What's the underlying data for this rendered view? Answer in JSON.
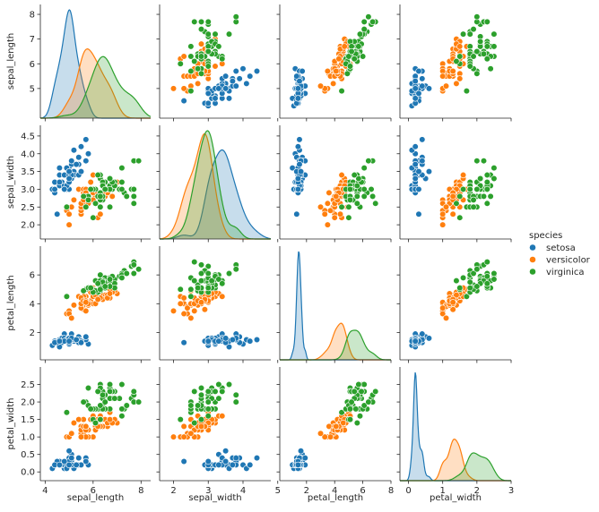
{
  "chart_data": {
    "type": "pairplot",
    "kind": "scatter with kde diagonal",
    "variables": [
      "sepal_length",
      "sepal_width",
      "petal_length",
      "petal_width"
    ],
    "hue": "species",
    "axis_ranges": {
      "sepal_length": [
        3.8,
        8.4
      ],
      "sepal_width": [
        1.6,
        4.8
      ],
      "petal_length": [
        0.1,
        8.0
      ],
      "petal_width": [
        -0.25,
        3.0
      ]
    },
    "ticks": {
      "sepal_length": [
        4,
        6,
        8
      ],
      "sepal_width": [
        2,
        3,
        4,
        5
      ],
      "petal_length": [
        2,
        4,
        6,
        8
      ],
      "petal_width": [
        0,
        1,
        2,
        3
      ]
    },
    "ytick_labels": {
      "sepal_length": [
        "5",
        "6",
        "7",
        "8"
      ],
      "sepal_width": [
        "2.0",
        "2.5",
        "3.0",
        "3.5",
        "4.0",
        "4.5"
      ],
      "petal_length": [
        "2",
        "4",
        "6"
      ],
      "petal_width": [
        "0.0",
        "0.5",
        "1.0",
        "1.5",
        "2.0",
        "2.5"
      ]
    },
    "ytick_values": {
      "sepal_length": [
        5,
        6,
        7,
        8
      ],
      "sepal_width": [
        2.0,
        2.5,
        3.0,
        3.5,
        4.0,
        4.5
      ],
      "petal_length": [
        2,
        4,
        6
      ],
      "petal_width": [
        0.0,
        0.5,
        1.0,
        1.5,
        2.0,
        2.5
      ]
    },
    "legend": {
      "title": "species",
      "placement": "right-center",
      "entries": [
        {
          "name": "setosa",
          "color": "#1f77b4"
        },
        {
          "name": "versicolor",
          "color": "#ff7f0e"
        },
        {
          "name": "virginica",
          "color": "#2ca02c"
        }
      ]
    },
    "grid": false,
    "kde_fill": true,
    "data": {
      "setosa": [
        [
          5.1,
          3.5,
          1.4,
          0.2
        ],
        [
          4.9,
          3.0,
          1.4,
          0.2
        ],
        [
          4.7,
          3.2,
          1.3,
          0.2
        ],
        [
          4.6,
          3.1,
          1.5,
          0.2
        ],
        [
          5.0,
          3.6,
          1.4,
          0.2
        ],
        [
          5.4,
          3.9,
          1.7,
          0.4
        ],
        [
          4.6,
          3.4,
          1.4,
          0.3
        ],
        [
          5.0,
          3.4,
          1.5,
          0.2
        ],
        [
          4.4,
          2.9,
          1.4,
          0.2
        ],
        [
          4.9,
          3.1,
          1.5,
          0.1
        ],
        [
          5.4,
          3.7,
          1.5,
          0.2
        ],
        [
          4.8,
          3.4,
          1.6,
          0.2
        ],
        [
          4.8,
          3.0,
          1.4,
          0.1
        ],
        [
          4.3,
          3.0,
          1.1,
          0.1
        ],
        [
          5.8,
          4.0,
          1.2,
          0.2
        ],
        [
          5.7,
          4.4,
          1.5,
          0.4
        ],
        [
          5.4,
          3.9,
          1.3,
          0.4
        ],
        [
          5.1,
          3.5,
          1.4,
          0.3
        ],
        [
          5.7,
          3.8,
          1.7,
          0.3
        ],
        [
          5.1,
          3.8,
          1.5,
          0.3
        ],
        [
          5.4,
          3.4,
          1.7,
          0.2
        ],
        [
          5.1,
          3.7,
          1.5,
          0.4
        ],
        [
          4.6,
          3.6,
          1.0,
          0.2
        ],
        [
          5.1,
          3.3,
          1.7,
          0.5
        ],
        [
          4.8,
          3.4,
          1.9,
          0.2
        ],
        [
          5.0,
          3.0,
          1.6,
          0.2
        ],
        [
          5.0,
          3.4,
          1.6,
          0.4
        ],
        [
          5.2,
          3.5,
          1.5,
          0.2
        ],
        [
          5.2,
          3.4,
          1.4,
          0.2
        ],
        [
          4.7,
          3.2,
          1.6,
          0.2
        ],
        [
          4.8,
          3.1,
          1.6,
          0.2
        ],
        [
          5.4,
          3.4,
          1.5,
          0.4
        ],
        [
          5.2,
          4.1,
          1.5,
          0.1
        ],
        [
          5.5,
          4.2,
          1.4,
          0.2
        ],
        [
          4.9,
          3.1,
          1.5,
          0.2
        ],
        [
          5.0,
          3.2,
          1.2,
          0.2
        ],
        [
          5.5,
          3.5,
          1.3,
          0.2
        ],
        [
          4.9,
          3.6,
          1.4,
          0.1
        ],
        [
          4.4,
          3.0,
          1.3,
          0.2
        ],
        [
          5.1,
          3.4,
          1.5,
          0.2
        ],
        [
          5.0,
          3.5,
          1.3,
          0.3
        ],
        [
          4.5,
          2.3,
          1.3,
          0.3
        ],
        [
          4.4,
          3.2,
          1.3,
          0.2
        ],
        [
          5.0,
          3.5,
          1.6,
          0.6
        ],
        [
          5.1,
          3.8,
          1.9,
          0.4
        ],
        [
          4.8,
          3.0,
          1.4,
          0.3
        ],
        [
          5.1,
          3.8,
          1.6,
          0.2
        ],
        [
          4.6,
          3.2,
          1.4,
          0.2
        ],
        [
          5.3,
          3.7,
          1.5,
          0.2
        ],
        [
          5.0,
          3.3,
          1.4,
          0.2
        ]
      ],
      "versicolor": [
        [
          7.0,
          3.2,
          4.7,
          1.4
        ],
        [
          6.4,
          3.2,
          4.5,
          1.5
        ],
        [
          6.9,
          3.1,
          4.9,
          1.5
        ],
        [
          5.5,
          2.3,
          4.0,
          1.3
        ],
        [
          6.5,
          2.8,
          4.6,
          1.5
        ],
        [
          5.7,
          2.8,
          4.5,
          1.3
        ],
        [
          6.3,
          3.3,
          4.7,
          1.6
        ],
        [
          4.9,
          2.4,
          3.3,
          1.0
        ],
        [
          6.6,
          2.9,
          4.6,
          1.3
        ],
        [
          5.2,
          2.7,
          3.9,
          1.4
        ],
        [
          5.0,
          2.0,
          3.5,
          1.0
        ],
        [
          5.9,
          3.0,
          4.2,
          1.5
        ],
        [
          6.0,
          2.2,
          4.0,
          1.0
        ],
        [
          6.1,
          2.9,
          4.7,
          1.4
        ],
        [
          5.6,
          2.9,
          3.6,
          1.3
        ],
        [
          6.7,
          3.1,
          4.4,
          1.4
        ],
        [
          5.6,
          3.0,
          4.5,
          1.5
        ],
        [
          5.8,
          2.7,
          4.1,
          1.0
        ],
        [
          6.2,
          2.2,
          4.5,
          1.5
        ],
        [
          5.6,
          2.5,
          3.9,
          1.1
        ],
        [
          5.9,
          3.2,
          4.8,
          1.8
        ],
        [
          6.1,
          2.8,
          4.0,
          1.3
        ],
        [
          6.3,
          2.5,
          4.9,
          1.5
        ],
        [
          6.1,
          2.8,
          4.7,
          1.2
        ],
        [
          6.4,
          2.9,
          4.3,
          1.3
        ],
        [
          6.6,
          3.0,
          4.4,
          1.4
        ],
        [
          6.8,
          2.8,
          4.8,
          1.4
        ],
        [
          6.7,
          3.0,
          5.0,
          1.7
        ],
        [
          6.0,
          2.9,
          4.5,
          1.5
        ],
        [
          5.7,
          2.6,
          3.5,
          1.0
        ],
        [
          5.5,
          2.4,
          3.8,
          1.1
        ],
        [
          5.5,
          2.4,
          3.7,
          1.0
        ],
        [
          5.8,
          2.7,
          3.9,
          1.2
        ],
        [
          6.0,
          2.7,
          5.1,
          1.6
        ],
        [
          5.4,
          3.0,
          4.5,
          1.5
        ],
        [
          6.0,
          3.4,
          4.5,
          1.6
        ],
        [
          6.7,
          3.1,
          4.7,
          1.5
        ],
        [
          6.3,
          2.3,
          4.4,
          1.3
        ],
        [
          5.6,
          3.0,
          4.1,
          1.3
        ],
        [
          5.5,
          2.5,
          4.0,
          1.3
        ],
        [
          5.5,
          2.6,
          4.4,
          1.2
        ],
        [
          6.1,
          3.0,
          4.6,
          1.4
        ],
        [
          5.8,
          2.6,
          4.0,
          1.2
        ],
        [
          5.0,
          2.3,
          3.3,
          1.0
        ],
        [
          5.6,
          2.7,
          4.2,
          1.3
        ],
        [
          5.7,
          3.0,
          4.2,
          1.2
        ],
        [
          5.7,
          2.9,
          4.2,
          1.3
        ],
        [
          6.2,
          2.9,
          4.3,
          1.3
        ],
        [
          5.1,
          2.5,
          3.0,
          1.1
        ],
        [
          5.7,
          2.8,
          4.1,
          1.3
        ]
      ],
      "virginica": [
        [
          6.3,
          3.3,
          6.0,
          2.5
        ],
        [
          5.8,
          2.7,
          5.1,
          1.9
        ],
        [
          7.1,
          3.0,
          5.9,
          2.1
        ],
        [
          6.3,
          2.9,
          5.6,
          1.8
        ],
        [
          6.5,
          3.0,
          5.8,
          2.2
        ],
        [
          7.6,
          3.0,
          6.6,
          2.1
        ],
        [
          4.9,
          2.5,
          4.5,
          1.7
        ],
        [
          7.3,
          2.9,
          6.3,
          1.8
        ],
        [
          6.7,
          2.5,
          5.8,
          1.8
        ],
        [
          7.2,
          3.6,
          6.1,
          2.5
        ],
        [
          6.5,
          3.2,
          5.1,
          2.0
        ],
        [
          6.4,
          2.7,
          5.3,
          1.9
        ],
        [
          6.8,
          3.0,
          5.5,
          2.1
        ],
        [
          5.7,
          2.5,
          5.0,
          2.0
        ],
        [
          5.8,
          2.8,
          5.1,
          2.4
        ],
        [
          6.4,
          3.2,
          5.3,
          2.3
        ],
        [
          6.5,
          3.0,
          5.5,
          1.8
        ],
        [
          7.7,
          3.8,
          6.7,
          2.2
        ],
        [
          7.7,
          2.6,
          6.9,
          2.3
        ],
        [
          6.0,
          2.2,
          5.0,
          1.5
        ],
        [
          6.9,
          3.2,
          5.7,
          2.3
        ],
        [
          5.6,
          2.8,
          4.9,
          2.0
        ],
        [
          7.7,
          2.8,
          6.7,
          2.0
        ],
        [
          6.3,
          2.7,
          4.9,
          1.8
        ],
        [
          6.7,
          3.3,
          5.7,
          2.1
        ],
        [
          7.2,
          3.2,
          6.0,
          1.8
        ],
        [
          6.2,
          2.8,
          4.8,
          1.8
        ],
        [
          6.1,
          3.0,
          4.9,
          1.8
        ],
        [
          6.4,
          2.8,
          5.6,
          2.1
        ],
        [
          7.2,
          3.0,
          5.8,
          1.6
        ],
        [
          7.4,
          2.8,
          6.1,
          1.9
        ],
        [
          7.9,
          3.8,
          6.4,
          2.0
        ],
        [
          6.4,
          2.8,
          5.6,
          2.2
        ],
        [
          6.3,
          2.8,
          5.1,
          1.5
        ],
        [
          6.1,
          2.6,
          5.6,
          1.4
        ],
        [
          7.7,
          3.0,
          6.1,
          2.3
        ],
        [
          6.3,
          3.4,
          5.6,
          2.4
        ],
        [
          6.4,
          3.1,
          5.5,
          1.8
        ],
        [
          6.0,
          3.0,
          4.8,
          1.8
        ],
        [
          6.9,
          3.1,
          5.4,
          2.1
        ],
        [
          6.7,
          3.1,
          5.6,
          2.4
        ],
        [
          6.9,
          3.1,
          5.1,
          2.3
        ],
        [
          5.8,
          2.7,
          5.1,
          1.9
        ],
        [
          6.8,
          3.2,
          5.9,
          2.3
        ],
        [
          6.7,
          3.3,
          5.7,
          2.5
        ],
        [
          6.7,
          3.0,
          5.2,
          2.3
        ],
        [
          6.3,
          2.5,
          5.0,
          1.9
        ],
        [
          6.5,
          3.0,
          5.2,
          2.0
        ],
        [
          6.2,
          3.4,
          5.4,
          2.3
        ],
        [
          5.9,
          3.0,
          5.1,
          1.8
        ]
      ]
    }
  }
}
